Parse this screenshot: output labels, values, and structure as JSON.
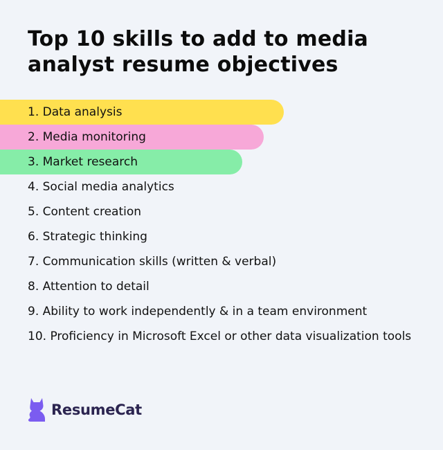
{
  "title": "Top 10 skills to add to media analyst resume objectives",
  "skills": [
    {
      "text": "1. Data analysis",
      "highlight": "#ffe04f",
      "level": 0.64
    },
    {
      "text": "2. Media monitoring",
      "highlight": "#f7a8d8",
      "level": 0.595
    },
    {
      "text": "3. Market research",
      "highlight": "#86eda8",
      "level": 0.547
    },
    {
      "text": "4. Social media analytics"
    },
    {
      "text": "5. Content creation"
    },
    {
      "text": "6. Strategic thinking"
    },
    {
      "text": "7. Communication skills (written & verbal)"
    },
    {
      "text": "8. Attention to detail"
    },
    {
      "text": "9. Ability to work independently & in a team environment"
    },
    {
      "text": "10. Proficiency in Microsoft Excel or other data visualization tools"
    }
  ],
  "brand": {
    "name": "ResumeCat",
    "icon": "cat-icon",
    "color": "#7b5cf0"
  }
}
